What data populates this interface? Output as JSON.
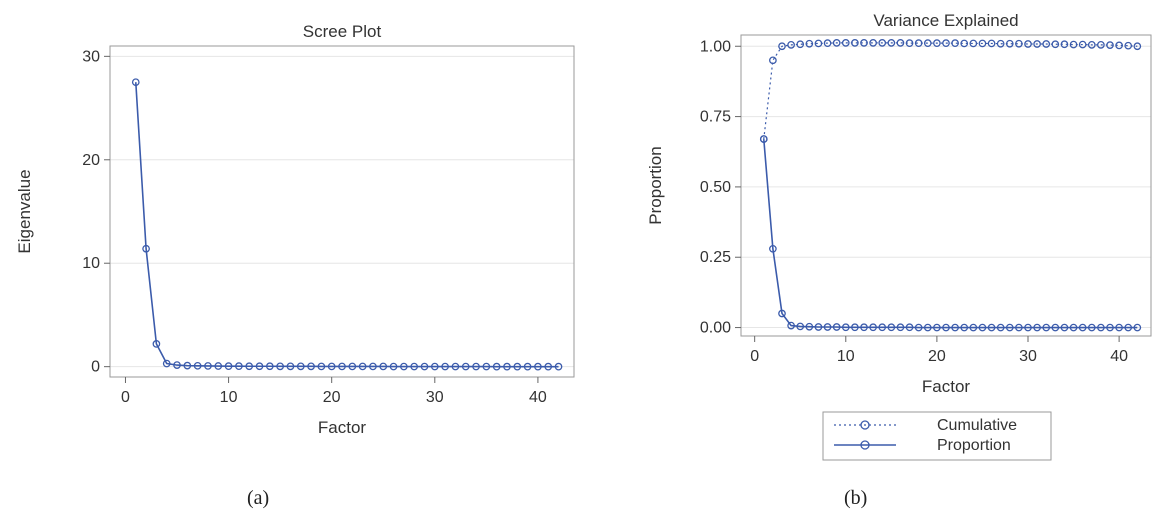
{
  "chart_data": [
    {
      "type": "line",
      "title": "Scree Plot",
      "xlabel": "Factor",
      "ylabel": "Eigenvalue",
      "xlim": [
        -1.5,
        43.5
      ],
      "ylim": [
        -1,
        31
      ],
      "xticks": [
        0,
        10,
        20,
        30,
        40
      ],
      "yticks": [
        0,
        10,
        20,
        30
      ],
      "grid": "horizontal",
      "series": [
        {
          "color": "#3b5bab",
          "line_style": "solid",
          "marker": "circle",
          "x": [
            1,
            2,
            3,
            4,
            5,
            6,
            7,
            8,
            9,
            10,
            11,
            12,
            13,
            14,
            15,
            16,
            17,
            18,
            19,
            20,
            21,
            22,
            23,
            24,
            25,
            26,
            27,
            28,
            29,
            30,
            31,
            32,
            33,
            34,
            35,
            36,
            37,
            38,
            39,
            40,
            41,
            42
          ],
          "values": [
            27.5,
            11.4,
            2.2,
            0.3,
            0.15,
            0.1,
            0.08,
            0.07,
            0.06,
            0.05,
            0.05,
            0.04,
            0.04,
            0.04,
            0.03,
            0.03,
            0.03,
            0.03,
            0.02,
            0.02,
            0.02,
            0.02,
            0.02,
            0.02,
            0.02,
            0.01,
            0.01,
            0.01,
            0.01,
            0.01,
            0.01,
            0.01,
            0.01,
            0.01,
            0.01,
            0.0,
            0.0,
            0.0,
            0.0,
            0.0,
            0.0,
            0.0
          ]
        }
      ]
    },
    {
      "type": "line",
      "title": "Variance Explained",
      "xlabel": "Factor",
      "ylabel": "Proportion",
      "xlim": [
        -1.5,
        43.5
      ],
      "ylim": [
        -0.03,
        1.04
      ],
      "xticks": [
        0,
        10,
        20,
        30,
        40
      ],
      "yticks": [
        "0.00",
        "0.25",
        "0.50",
        "0.75",
        "1.00"
      ],
      "grid": "horizontal",
      "legend": "bottom",
      "series": [
        {
          "name": "Cumulative",
          "color": "#3b5bab",
          "line_style": "dotted",
          "marker": "circle",
          "x": [
            1,
            2,
            3,
            4,
            5,
            6,
            7,
            8,
            9,
            10,
            11,
            12,
            13,
            14,
            15,
            16,
            17,
            18,
            19,
            20,
            21,
            22,
            23,
            24,
            25,
            26,
            27,
            28,
            29,
            30,
            31,
            32,
            33,
            34,
            35,
            36,
            37,
            38,
            39,
            40,
            41,
            42
          ],
          "values": [
            0.67,
            0.95,
            1.0,
            1.005,
            1.007,
            1.009,
            1.01,
            1.011,
            1.012,
            1.012,
            1.012,
            1.012,
            1.012,
            1.012,
            1.012,
            1.012,
            1.011,
            1.011,
            1.011,
            1.011,
            1.011,
            1.011,
            1.01,
            1.01,
            1.01,
            1.01,
            1.009,
            1.009,
            1.009,
            1.008,
            1.008,
            1.008,
            1.007,
            1.007,
            1.006,
            1.006,
            1.005,
            1.005,
            1.004,
            1.003,
            1.002,
            1.0
          ]
        },
        {
          "name": "Proportion",
          "color": "#3b5bab",
          "line_style": "solid",
          "marker": "circle",
          "x": [
            1,
            2,
            3,
            4,
            5,
            6,
            7,
            8,
            9,
            10,
            11,
            12,
            13,
            14,
            15,
            16,
            17,
            18,
            19,
            20,
            21,
            22,
            23,
            24,
            25,
            26,
            27,
            28,
            29,
            30,
            31,
            32,
            33,
            34,
            35,
            36,
            37,
            38,
            39,
            40,
            41,
            42
          ],
          "values": [
            0.67,
            0.28,
            0.05,
            0.007,
            0.004,
            0.003,
            0.002,
            0.002,
            0.002,
            0.001,
            0.001,
            0.001,
            0.001,
            0.001,
            0.001,
            0.001,
            0.001,
            0.0,
            0.0,
            0.0,
            0.0,
            0.0,
            0.0,
            0.0,
            0.0,
            0.0,
            0.0,
            0.0,
            0.0,
            0.0,
            0.0,
            0.0,
            0.0,
            0.0,
            0.0,
            0.0,
            0.0,
            0.0,
            0.0,
            0.0,
            0.0,
            0.0
          ]
        }
      ]
    }
  ],
  "panel_labels": [
    "(a)",
    "(b)"
  ]
}
